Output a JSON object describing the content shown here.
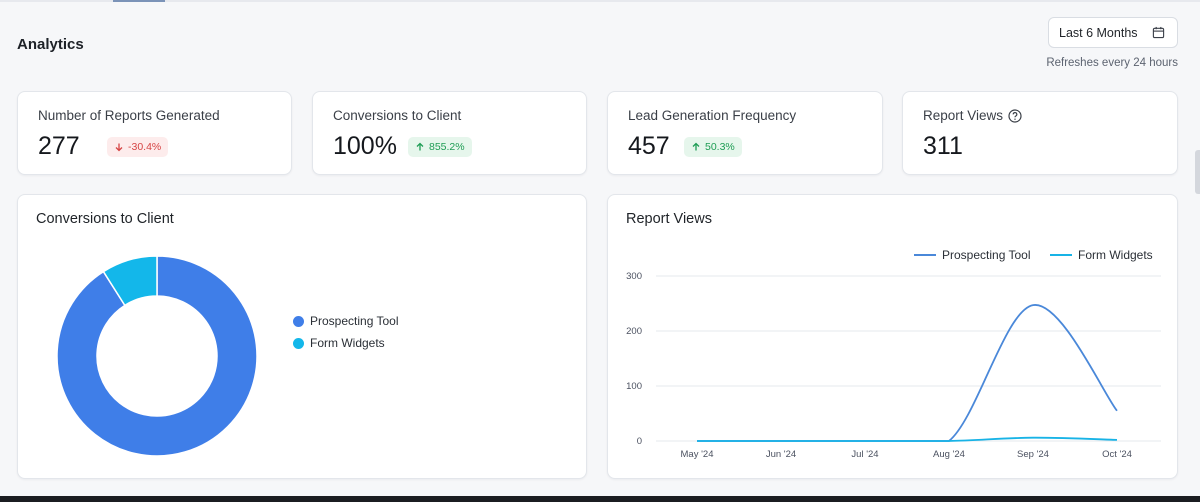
{
  "page": {
    "title": "Analytics",
    "date_range": "Last 6 Months",
    "refresh_note": "Refreshes every 24 hours"
  },
  "kpis": [
    {
      "label": "Number of Reports Generated",
      "value": "277",
      "change": "-30.4%",
      "direction": "down"
    },
    {
      "label": "Conversions to Client",
      "value": "100%",
      "change": "855.2%",
      "direction": "up"
    },
    {
      "label": "Lead Generation Frequency",
      "value": "457",
      "change": "50.3%",
      "direction": "up"
    },
    {
      "label": "Report Views",
      "value": "311"
    }
  ],
  "colors": {
    "prospecting": "#3f7ee8",
    "form_widgets": "#13b7ea",
    "line_prospecting": "#4a88d9",
    "line_form": "#18b3e6",
    "down": "#d64545",
    "up": "#1f9d55"
  },
  "icons": {
    "date": "calendar-icon",
    "help": "question-circle-icon",
    "down": "arrow-down-icon",
    "up": "arrow-up-icon"
  },
  "chart_data": [
    {
      "type": "pie",
      "title": "Conversions to Client",
      "donut": true,
      "labels": [
        "Prospecting Tool",
        "Form Widgets"
      ],
      "values": [
        91,
        9
      ],
      "legend": "right"
    },
    {
      "type": "line",
      "title": "Report Views",
      "categories": [
        "May '24",
        "Jun '24",
        "Jul '24",
        "Aug '24",
        "Sep '24",
        "Oct '24"
      ],
      "series": [
        {
          "name": "Prospecting Tool",
          "values": [
            0,
            0,
            0,
            0,
            247,
            55
          ]
        },
        {
          "name": "Form Widgets",
          "values": [
            0,
            0,
            0,
            0,
            6,
            2
          ]
        }
      ],
      "y_ticks": [
        0,
        100,
        200,
        300
      ],
      "ylim": [
        0,
        300
      ],
      "grid": true,
      "legend": "top-right"
    }
  ]
}
